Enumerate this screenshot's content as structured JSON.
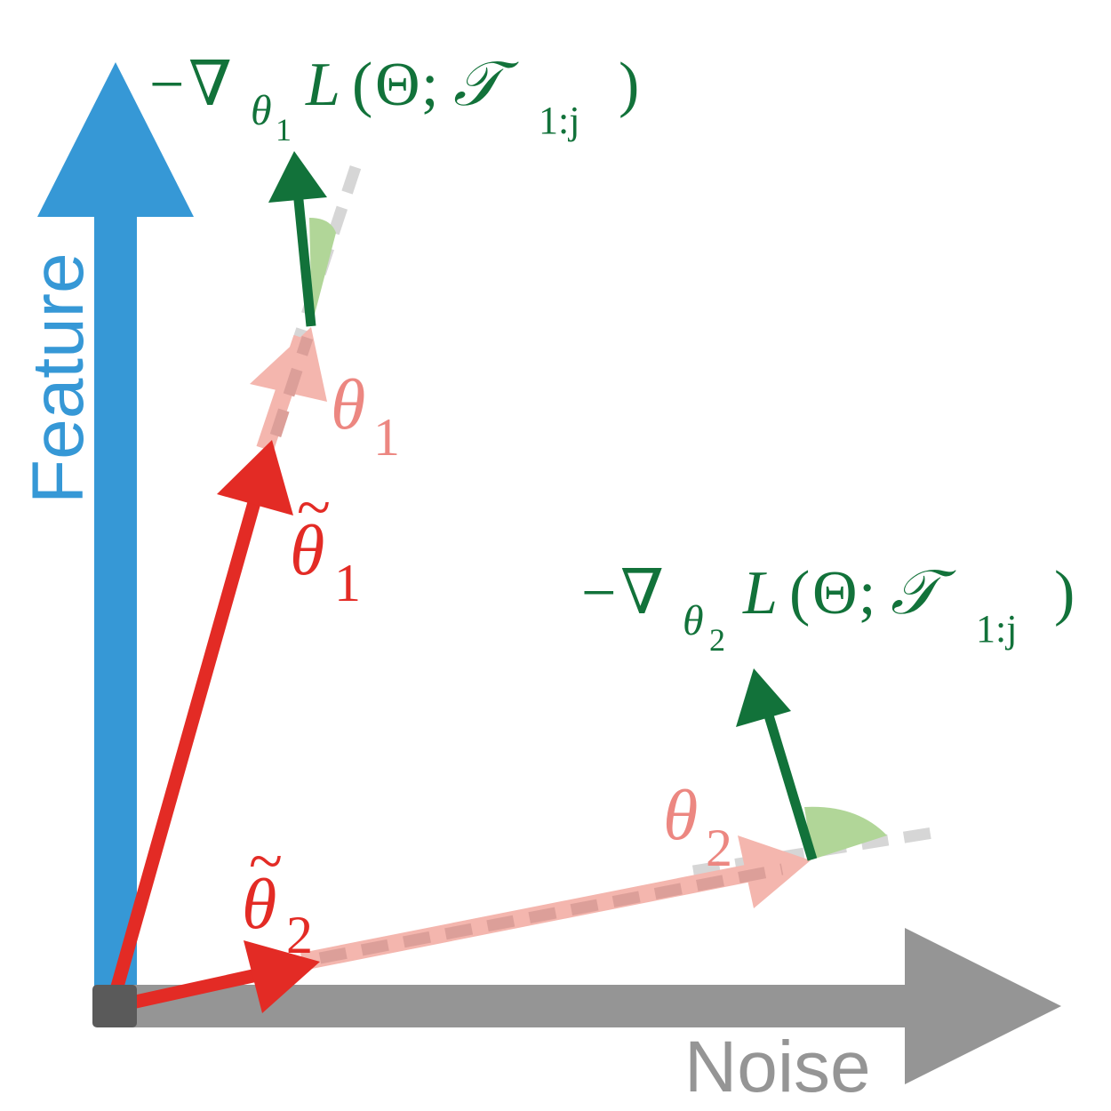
{
  "axes": {
    "feature_label": "Feature",
    "noise_label": "Noise"
  },
  "labels": {
    "theta1": {
      "symbol": "θ",
      "subscript": "1"
    },
    "theta1_tilde": {
      "tilde": "~",
      "symbol": "θ",
      "subscript": "1"
    },
    "theta2": {
      "symbol": "θ",
      "subscript": "2"
    },
    "theta2_tilde": {
      "tilde": "~",
      "symbol": "θ",
      "subscript": "2"
    },
    "grad1": {
      "minus": "−",
      "nabla": "∇",
      "param": "θ",
      "param_sub": "1",
      "func": "L",
      "open": "(",
      "Theta": "Θ",
      "sep": ";",
      "set": "𝒯",
      "set_sub": "1:j",
      "close": ")"
    },
    "grad2": {
      "minus": "−",
      "nabla": "∇",
      "param": "θ",
      "param_sub": "2",
      "func": "L",
      "open": "(",
      "Theta": "Θ",
      "sep": ";",
      "set": "𝒯",
      "set_sub": "1:j",
      "close": ")"
    }
  },
  "colors": {
    "feature_axis": "#3698d6",
    "noise_axis": "#959595",
    "origin": "#5a5a5a",
    "theta_tilde": "#e32b25",
    "theta": "#f4b6ae",
    "theta_label": "#ec8781",
    "dashed_line": "#d6d6d6",
    "dashed_on_theta": "#dc9f99",
    "gradient": "#12723a",
    "angle_fill": "#b1d698",
    "axis_label_feature": "#3698d6",
    "axis_label_noise": "#959595"
  }
}
